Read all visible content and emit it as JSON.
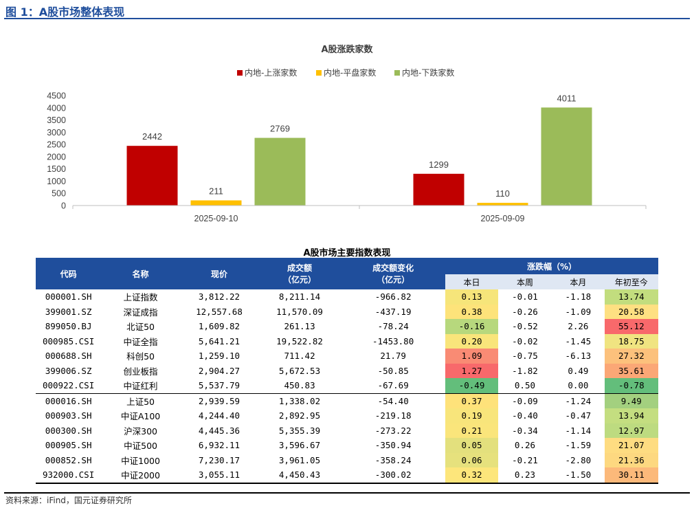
{
  "figure_title": "图 1：A股市场整体表现",
  "source": "资料来源：iFind，国元证券研究所",
  "chart_data": {
    "type": "bar",
    "title": "A股涨跌家数",
    "categories": [
      "2025-09-10",
      "2025-09-09"
    ],
    "series": [
      {
        "name": "内地-上涨家数",
        "color": "#c00000",
        "values": [
          2442,
          1299
        ]
      },
      {
        "name": "内地-平盘家数",
        "color": "#ffc000",
        "values": [
          211,
          110
        ]
      },
      {
        "name": "内地-下跌家数",
        "color": "#9bbb59",
        "values": [
          2769,
          4011
        ]
      }
    ],
    "y_ticks": [
      0,
      500,
      1000,
      1500,
      2000,
      2500,
      3000,
      3500,
      4000,
      4500
    ],
    "ylim": [
      0,
      4500
    ],
    "legend_position": "top-center",
    "grid": false
  },
  "table": {
    "title": "A股市场主要指数表现",
    "headers": {
      "code": "代码",
      "name": "名称",
      "price": "现价",
      "volume": "成交额",
      "volume_unit": "（亿元）",
      "volume_change": "成交额变化",
      "volume_change_unit": "（亿元）",
      "change_group": "涨跌幅（%）",
      "sub": [
        "本日",
        "本周",
        "本月",
        "年初至今"
      ]
    },
    "rows": [
      {
        "code": "000001.SH",
        "name": "上证指数",
        "price": "3,812.22",
        "volume": "8,211.14",
        "vchg": "-966.82",
        "day": "0.13",
        "week": "-0.01",
        "month": "-1.18",
        "ytd": "13.74",
        "day_bg": "#f6e57a",
        "ytd_bg": "#c2dd7e"
      },
      {
        "code": "399001.SZ",
        "name": "深证成指",
        "price": "12,557.68",
        "volume": "11,570.09",
        "vchg": "-437.19",
        "day": "0.38",
        "week": "-0.26",
        "month": "-1.09",
        "ytd": "20.58",
        "day_bg": "#fde37a",
        "ytd_bg": "#fee082"
      },
      {
        "code": "899050.BJ",
        "name": "北证50",
        "price": "1,609.82",
        "volume": "261.13",
        "vchg": "-78.24",
        "day": "-0.16",
        "week": "-0.52",
        "month": "2.26",
        "ytd": "55.12",
        "day_bg": "#b7d87d",
        "ytd_bg": "#f8696b"
      },
      {
        "code": "000985.CSI",
        "name": "中证全指",
        "price": "5,641.21",
        "volume": "19,522.82",
        "vchg": "-1453.80",
        "day": "0.20",
        "week": "-0.02",
        "month": "-1.45",
        "ytd": "18.75",
        "day_bg": "#f9e57b",
        "ytd_bg": "#f0e481"
      },
      {
        "code": "000688.SH",
        "name": "科创50",
        "price": "1,259.10",
        "volume": "711.42",
        "vchg": "21.79",
        "day": "1.09",
        "week": "-0.75",
        "month": "-6.13",
        "ytd": "27.32",
        "day_bg": "#f98b74",
        "ytd_bg": "#fcc17c"
      },
      {
        "code": "399006.SZ",
        "name": "创业板指",
        "price": "2,904.27",
        "volume": "5,672.53",
        "vchg": "-50.85",
        "day": "1.27",
        "week": "-1.82",
        "month": "0.49",
        "ytd": "35.61",
        "day_bg": "#f8696b",
        "ytd_bg": "#fba776"
      },
      {
        "code": "000922.CSI",
        "name": "中证红利",
        "price": "5,537.79",
        "volume": "450.83",
        "vchg": "-67.69",
        "day": "-0.49",
        "week": "0.50",
        "month": "0.00",
        "ytd": "-0.78",
        "day_bg": "#63be7b",
        "ytd_bg": "#63be7b"
      },
      {
        "code": "000016.SH",
        "name": "上证50",
        "price": "2,939.59",
        "volume": "1,338.02",
        "vchg": "-54.40",
        "day": "0.37",
        "week": "-0.09",
        "month": "-1.24",
        "ytd": "9.49",
        "day_bg": "#fee27a",
        "ytd_bg": "#a3d07f"
      },
      {
        "code": "000903.SH",
        "name": "中证A100",
        "price": "4,244.40",
        "volume": "2,892.95",
        "vchg": "-219.18",
        "day": "0.19",
        "week": "-0.40",
        "month": "-0.47",
        "ytd": "13.94",
        "day_bg": "#f8e57b",
        "ytd_bg": "#c4de80"
      },
      {
        "code": "000300.SH",
        "name": "沪深300",
        "price": "4,445.36",
        "volume": "5,355.39",
        "vchg": "-273.22",
        "day": "0.21",
        "week": "-0.34",
        "month": "-1.14",
        "ytd": "12.97",
        "day_bg": "#fae57b",
        "ytd_bg": "#bddb80"
      },
      {
        "code": "000905.SH",
        "name": "中证500",
        "price": "6,932.11",
        "volume": "3,596.67",
        "vchg": "-350.94",
        "day": "0.05",
        "week": "0.26",
        "month": "-1.59",
        "ytd": "21.07",
        "day_bg": "#e3e07d",
        "ytd_bg": "#fedc81"
      },
      {
        "code": "000852.SH",
        "name": "中证1000",
        "price": "7,230.17",
        "volume": "3,961.05",
        "vchg": "-358.24",
        "day": "0.06",
        "week": "-0.21",
        "month": "-2.80",
        "ytd": "21.36",
        "day_bg": "#e6e17d",
        "ytd_bg": "#fdd880"
      },
      {
        "code": "932000.CSI",
        "name": "中证2000",
        "price": "3,055.11",
        "volume": "4,450.43",
        "vchg": "-300.02",
        "day": "0.32",
        "week": "0.23",
        "month": "-1.50",
        "ytd": "30.11",
        "day_bg": "#fde67b",
        "ytd_bg": "#fcb97a"
      }
    ]
  }
}
